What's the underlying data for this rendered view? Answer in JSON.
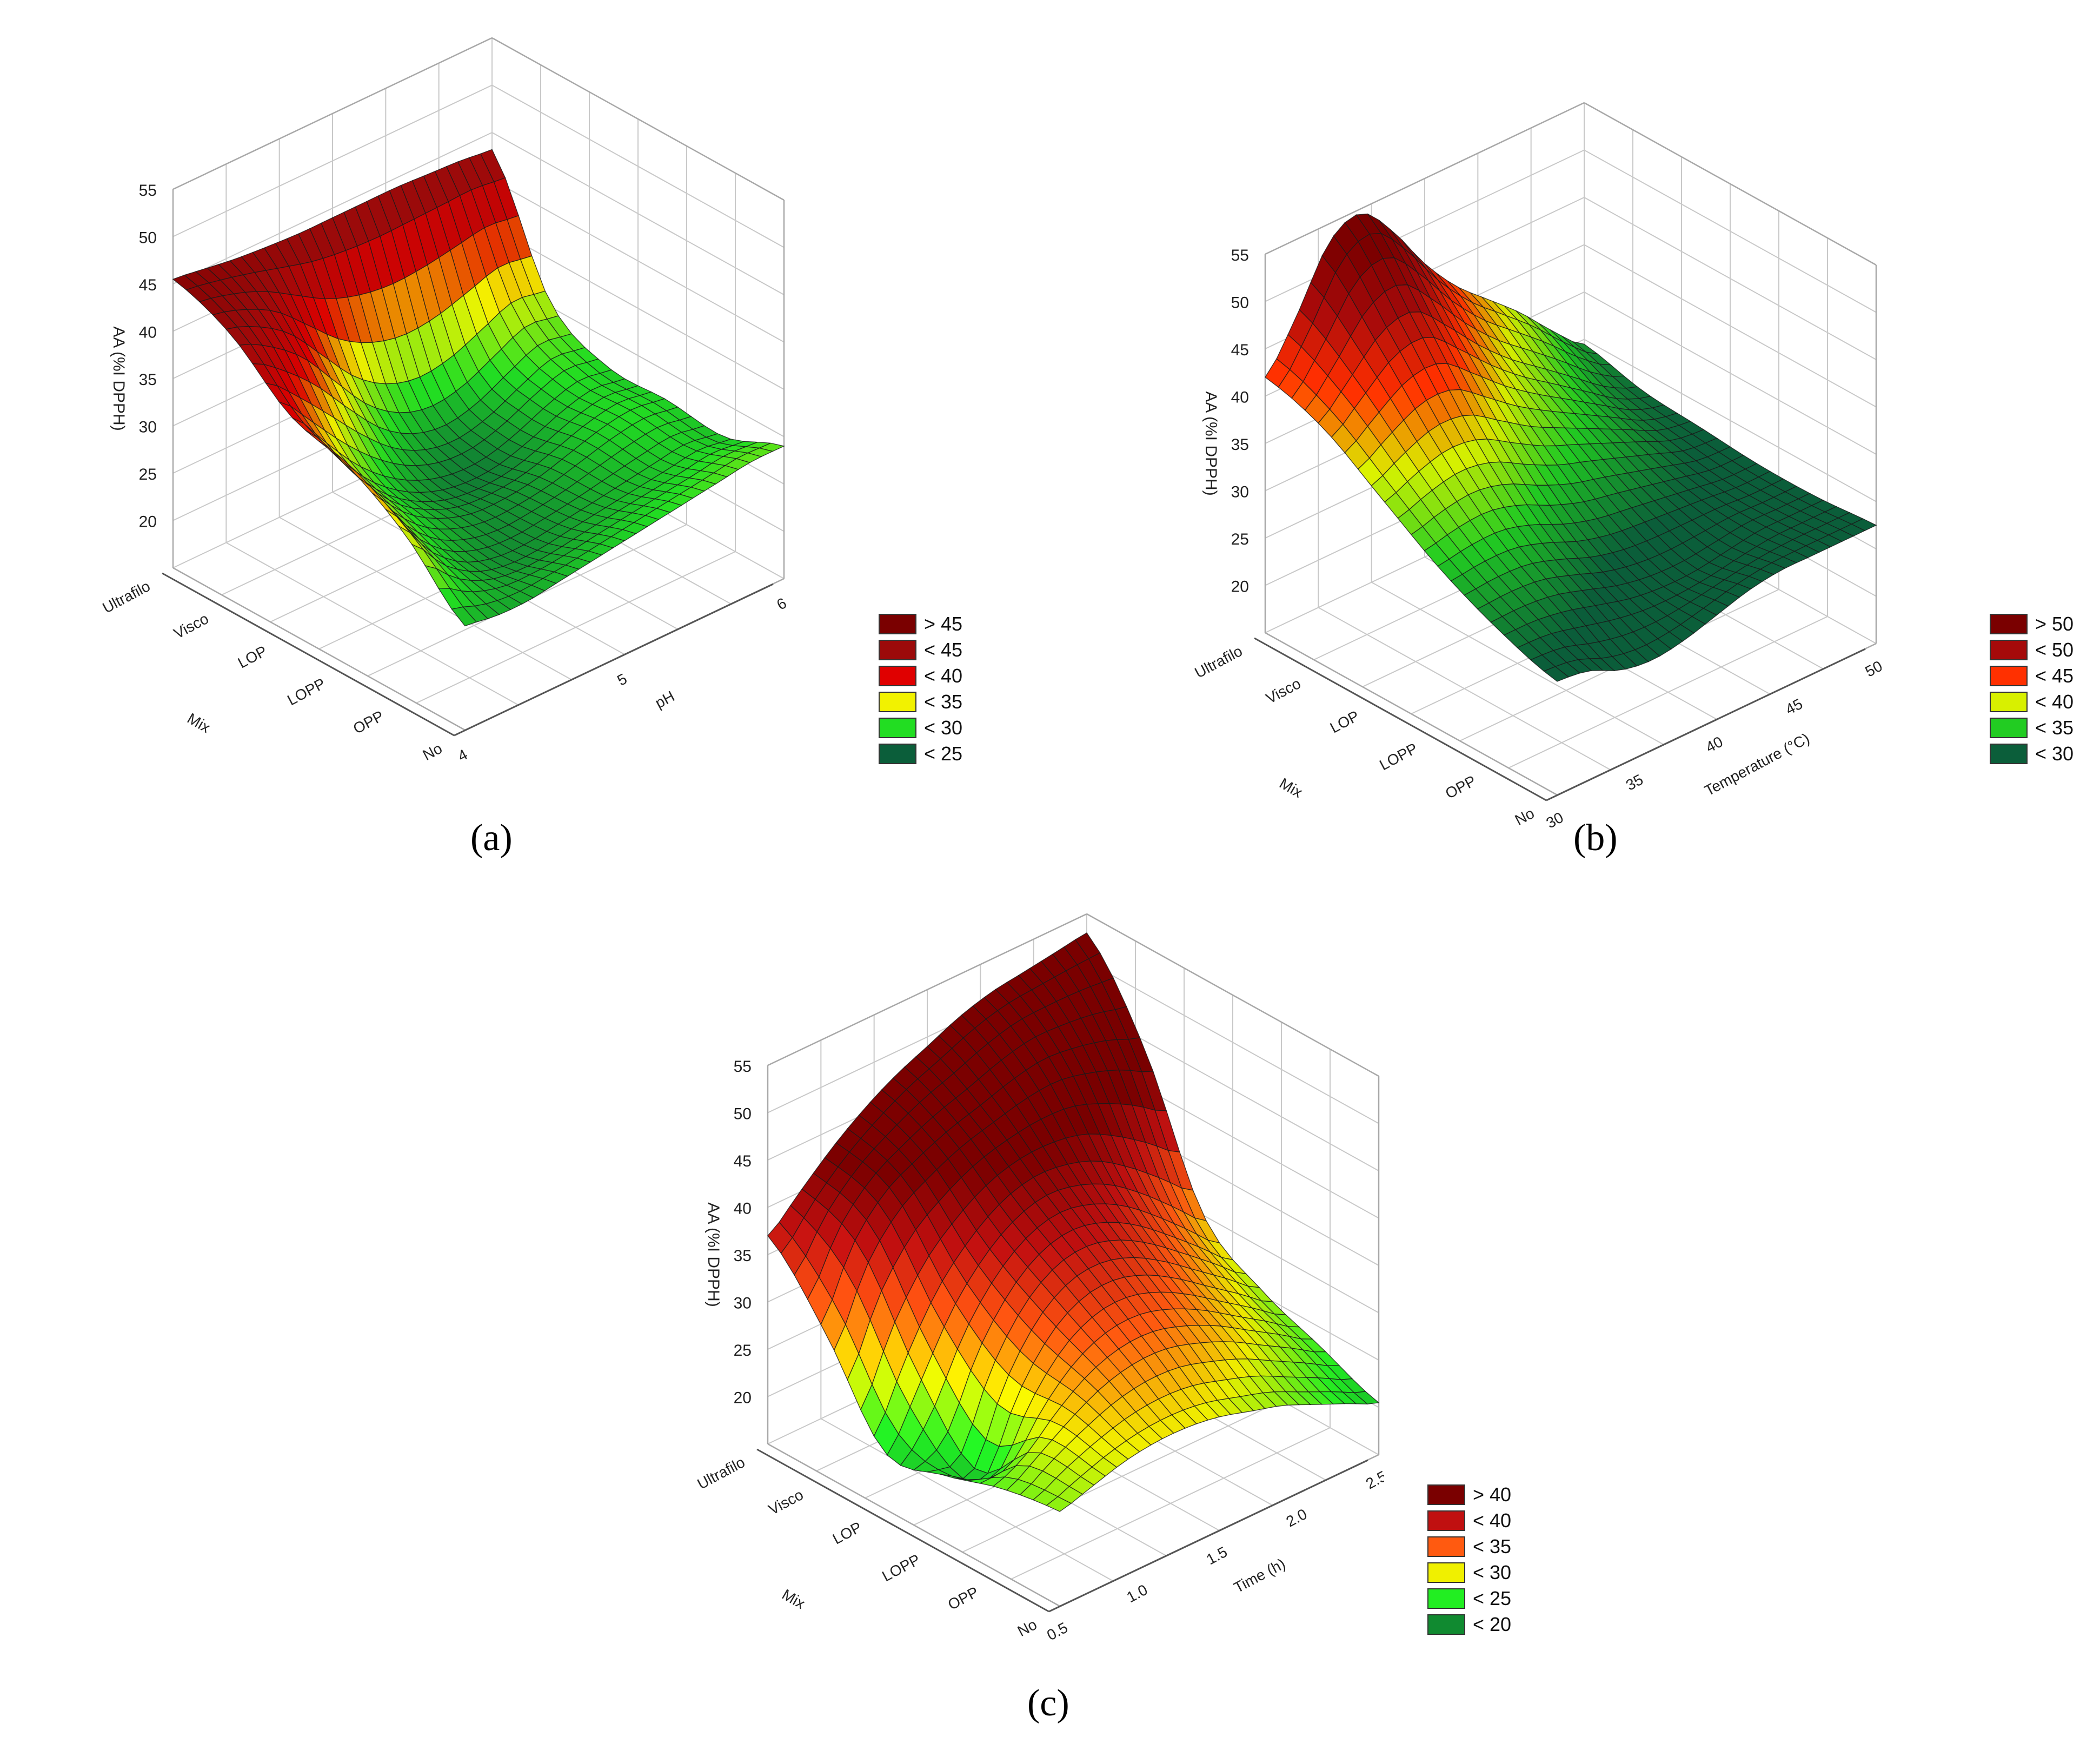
{
  "chart_data": [
    {
      "type": "surface",
      "panel": "(a)",
      "zlabel": "AA (%I DPPH)",
      "xlabel": "Mix",
      "ylabel": "pH",
      "zlim": [
        15,
        55
      ],
      "z_ticks": [
        "20",
        "25",
        "30",
        "35",
        "40",
        "45",
        "50",
        "55"
      ],
      "categories": [
        "Ultrafilo",
        "Visco",
        "LOP",
        "LOPP",
        "OPP",
        "No"
      ],
      "y_ticks": [
        "4",
        "5",
        "6"
      ],
      "ylim": [
        4,
        6
      ],
      "legend": [
        {
          "label": "> 45",
          "color": "#7a0000"
        },
        {
          "label": "< 45",
          "color": "#9c0a0a"
        },
        {
          "label": "< 40",
          "color": "#e00000"
        },
        {
          "label": "< 35",
          "color": "#f2f200"
        },
        {
          "label": "< 30",
          "color": "#22dd22"
        },
        {
          "label": "< 25",
          "color": "#0b5e3a"
        }
      ],
      "surface_z": [
        [
          45.5,
          45.0,
          44.5,
          44.2,
          44.0,
          44.0,
          44.0,
          44.0,
          43.8,
          43.6,
          43.2
        ],
        [
          43.0,
          41.5,
          39.0,
          35.0,
          31.0,
          28.5,
          27.5,
          28.0,
          29.5,
          31.0,
          30.5
        ],
        [
          38.0,
          34.0,
          30.0,
          27.0,
          25.0,
          24.0,
          24.0,
          25.0,
          26.5,
          27.5,
          27.0
        ],
        [
          36.0,
          31.0,
          27.5,
          25.5,
          24.5,
          24.5,
          25.0,
          26.0,
          27.0,
          27.5,
          27.0
        ],
        [
          32.0,
          28.0,
          25.5,
          24.5,
          24.5,
          25.0,
          25.5,
          26.0,
          26.5,
          27.0,
          26.5
        ],
        [
          26.0,
          25.5,
          25.5,
          26.0,
          26.5,
          27.0,
          27.5,
          28.0,
          28.5,
          29.0,
          29.0
        ]
      ]
    },
    {
      "type": "surface",
      "panel": "(b)",
      "zlabel": "AA (%I DPPH)",
      "xlabel": "Mix",
      "ylabel": "Temperature (°C)",
      "zlim": [
        15,
        55
      ],
      "z_ticks": [
        "20",
        "25",
        "30",
        "35",
        "40",
        "45",
        "50",
        "55"
      ],
      "categories": [
        "Ultrafilo",
        "Visco",
        "LOP",
        "LOPP",
        "OPP",
        "No"
      ],
      "y_ticks": [
        "30",
        "35",
        "40",
        "45",
        "50"
      ],
      "ylim": [
        30,
        50
      ],
      "legend": [
        {
          "label": "> 50",
          "color": "#7a0000"
        },
        {
          "label": "< 50",
          "color": "#a50a0a"
        },
        {
          "label": "< 45",
          "color": "#ff3000"
        },
        {
          "label": "< 40",
          "color": "#d8f000"
        },
        {
          "label": "< 35",
          "color": "#22cc22"
        },
        {
          "label": "< 30",
          "color": "#0b5e3a"
        }
      ],
      "surface_z": [
        [
          42.0,
          47.0,
          53.0,
          54.5,
          51.0,
          46.0,
          42.0,
          39.0,
          36.0,
          32.5,
          29.5
        ],
        [
          40.0,
          43.0,
          46.0,
          46.5,
          43.5,
          40.0,
          37.0,
          34.5,
          32.0,
          29.5,
          28.0
        ],
        [
          36.0,
          37.5,
          38.5,
          38.0,
          36.0,
          34.0,
          32.5,
          31.0,
          29.5,
          28.0,
          27.5
        ],
        [
          32.0,
          32.5,
          32.5,
          31.5,
          30.0,
          29.0,
          28.5,
          28.0,
          27.5,
          27.0,
          27.0
        ],
        [
          29.0,
          29.0,
          28.5,
          27.5,
          26.5,
          26.0,
          26.0,
          26.5,
          27.0,
          27.0,
          27.0
        ],
        [
          27.0,
          26.5,
          25.0,
          24.5,
          25.0,
          26.0,
          27.0,
          27.5,
          27.5,
          27.5,
          27.5
        ]
      ]
    },
    {
      "type": "surface",
      "panel": "(c)",
      "zlabel": "AA (%I DPPH)",
      "xlabel": "Mix",
      "ylabel": "Time (h)",
      "zlim": [
        15,
        55
      ],
      "z_ticks": [
        "20",
        "25",
        "30",
        "35",
        "40",
        "45",
        "50",
        "55"
      ],
      "categories": [
        "Ultrafilo",
        "Visco",
        "LOP",
        "LOPP",
        "OPP",
        "No"
      ],
      "y_ticks": [
        "0.5",
        "1.0",
        "1.5",
        "2.0",
        "2.5"
      ],
      "ylim": [
        0.5,
        2.5
      ],
      "legend": [
        {
          "label": "> 40",
          "color": "#7a0000"
        },
        {
          "label": "< 40",
          "color": "#c01010"
        },
        {
          "label": "< 35",
          "color": "#ff5a10"
        },
        {
          "label": "< 30",
          "color": "#f0f000"
        },
        {
          "label": "< 25",
          "color": "#22ee22"
        },
        {
          "label": "< 20",
          "color": "#108a30"
        }
      ],
      "surface_z": [
        [
          37.0,
          40.0,
          43.0,
          45.5,
          47.5,
          49.0,
          50.5,
          51.5,
          52.0,
          52.5,
          53.0
        ],
        [
          30.0,
          37.0,
          41.0,
          43.0,
          44.5,
          45.5,
          46.5,
          47.0,
          46.5,
          45.5,
          44.0
        ],
        [
          21.0,
          27.0,
          33.0,
          37.0,
          39.5,
          40.5,
          40.0,
          38.5,
          36.0,
          33.0,
          30.0
        ],
        [
          22.0,
          20.5,
          28.0,
          33.0,
          35.5,
          36.0,
          35.0,
          33.0,
          30.5,
          28.0,
          25.5
        ],
        [
          24.0,
          26.0,
          28.5,
          30.5,
          31.5,
          31.5,
          30.5,
          29.0,
          27.0,
          25.0,
          23.0
        ],
        [
          25.0,
          26.0,
          27.0,
          27.5,
          27.5,
          27.0,
          26.0,
          25.0,
          23.5,
          22.0,
          20.5
        ]
      ]
    }
  ]
}
